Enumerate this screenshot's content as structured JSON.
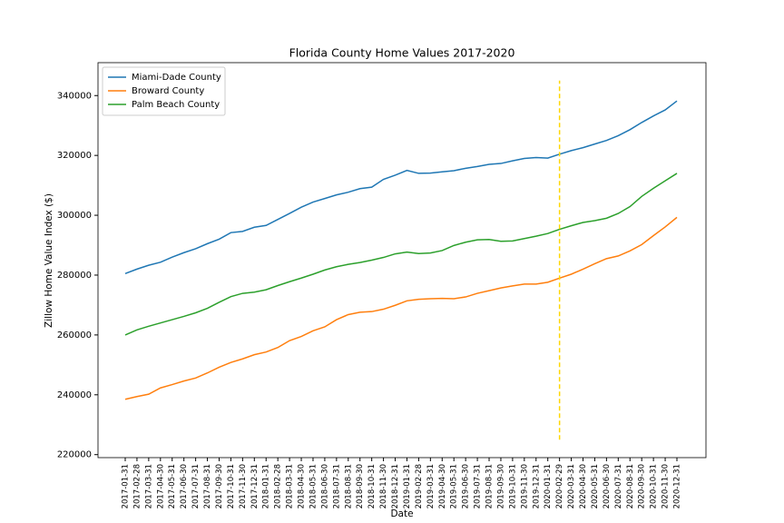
{
  "chart_data": {
    "type": "line",
    "title": "Florida County Home Values 2017-2020",
    "x_label": "Date",
    "y_label": "Zillow Home Value Index ($)",
    "categories": [
      "2017-01-31",
      "2017-02-28",
      "2017-03-31",
      "2017-04-30",
      "2017-05-31",
      "2017-06-30",
      "2017-07-31",
      "2017-08-31",
      "2017-09-30",
      "2017-10-31",
      "2017-11-30",
      "2017-12-31",
      "2018-01-31",
      "2018-02-28",
      "2018-03-31",
      "2018-04-30",
      "2018-05-31",
      "2018-06-30",
      "2018-07-31",
      "2018-08-31",
      "2018-09-30",
      "2018-10-31",
      "2018-11-30",
      "2018-12-31",
      "2019-01-31",
      "2019-02-28",
      "2019-03-31",
      "2019-04-30",
      "2019-05-31",
      "2019-06-30",
      "2019-07-31",
      "2019-08-31",
      "2019-09-30",
      "2019-10-31",
      "2019-11-30",
      "2019-12-31",
      "2020-01-31",
      "2020-02-29",
      "2020-03-31",
      "2020-04-30",
      "2020-05-31",
      "2020-06-30",
      "2020-07-31",
      "2020-08-31",
      "2020-09-30",
      "2020-10-31",
      "2020-11-30",
      "2020-12-31"
    ],
    "series": [
      {
        "name": "Miami-Dade County",
        "color": "#1f77b4",
        "values": [
          280500,
          282000,
          283300,
          284300,
          286000,
          287500,
          288800,
          290500,
          292000,
          294200,
          294600,
          296000,
          296600,
          298600,
          300600,
          302700,
          304400,
          305600,
          306800,
          307700,
          308900,
          309400,
          312000,
          313400,
          315000,
          314000,
          314100,
          314500,
          314900,
          315700,
          316300,
          317000,
          317300,
          318200,
          319000,
          319300,
          319100,
          320400,
          321600,
          322600,
          323800,
          325000,
          326600,
          328600,
          331000,
          333200,
          335200,
          338200
        ]
      },
      {
        "name": "Broward County",
        "color": "#ff7f0e",
        "values": [
          238500,
          239400,
          240200,
          242300,
          243400,
          244600,
          245600,
          247300,
          249200,
          250800,
          252000,
          253400,
          254300,
          255800,
          258100,
          259500,
          261400,
          262700,
          265100,
          266800,
          267600,
          267800,
          268600,
          269900,
          271400,
          271900,
          272100,
          272200,
          272100,
          272700,
          273900,
          274800,
          275700,
          276400,
          277000,
          277000,
          277600,
          279000,
          280300,
          282000,
          283800,
          285500,
          286400,
          288100,
          290200,
          293200,
          296100,
          299300
        ]
      },
      {
        "name": "Palm Beach County",
        "color": "#2ca02c",
        "values": [
          260000,
          261700,
          262900,
          264000,
          265100,
          266200,
          267400,
          268900,
          270900,
          272800,
          273900,
          274300,
          275100,
          276500,
          277800,
          279000,
          280300,
          281700,
          282800,
          283600,
          284200,
          285000,
          285900,
          287100,
          287700,
          287200,
          287400,
          288200,
          289900,
          291000,
          291800,
          291900,
          291300,
          291400,
          292200,
          293000,
          293900,
          295300,
          296500,
          297600,
          298200,
          299000,
          300600,
          302900,
          306300,
          309000,
          311500,
          314000
        ]
      }
    ],
    "vline": {
      "x": "2020-02-29",
      "ymin": 225000,
      "ymax": 345000,
      "color": "#ffd700"
    },
    "ylim": [
      219000,
      351000
    ],
    "yticks": [
      220000,
      240000,
      260000,
      280000,
      300000,
      320000,
      340000
    ],
    "legend": "upper left",
    "grid": false
  }
}
